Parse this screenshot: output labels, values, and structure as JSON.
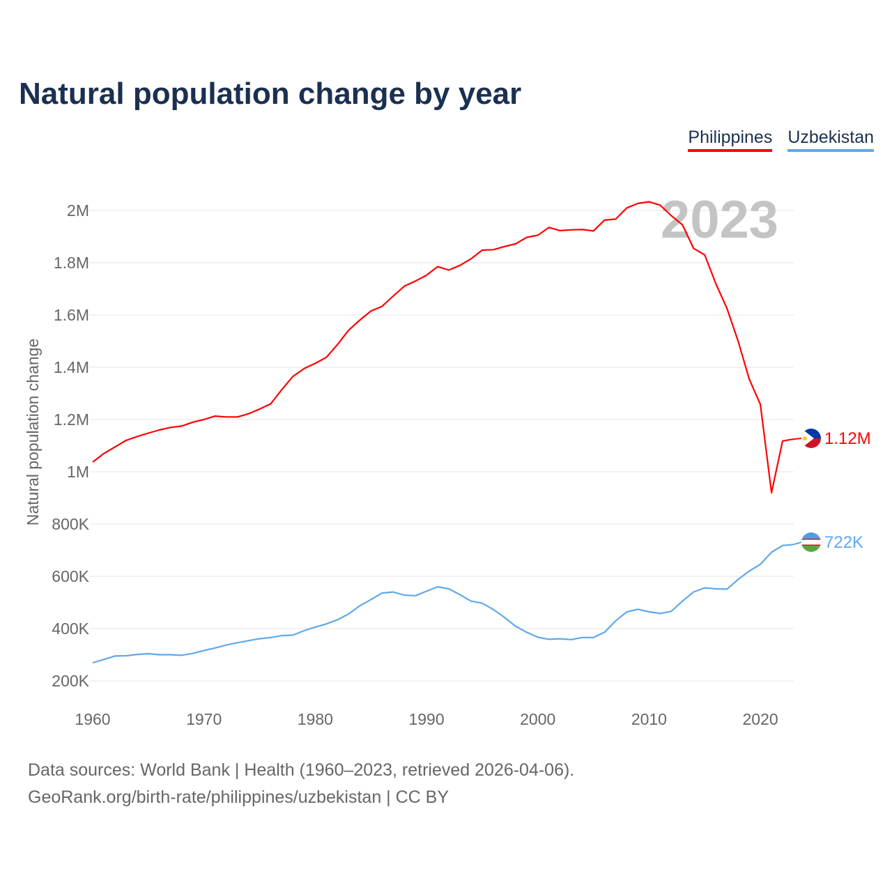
{
  "chart_data": {
    "type": "line",
    "title": "Natural population change by year",
    "ylabel": "Natural population change",
    "xlabel": "",
    "year_watermark": "2023",
    "xlim": [
      1960,
      2023
    ],
    "ylim": [
      200000,
      2000000
    ],
    "x_ticks": [
      1960,
      1970,
      1980,
      1990,
      2000,
      2010,
      2020
    ],
    "x_tick_labels": [
      "1960",
      "1970",
      "1980",
      "1990",
      "2000",
      "2010",
      "2020"
    ],
    "y_ticks": [
      200000,
      400000,
      600000,
      800000,
      1000000,
      1200000,
      1400000,
      1600000,
      1800000,
      2000000
    ],
    "y_tick_labels": [
      "200K",
      "400K",
      "600K",
      "800K",
      "1M",
      "1.2M",
      "1.4M",
      "1.6M",
      "1.8M",
      "2M"
    ],
    "grid": true,
    "legend_position": "top-right",
    "x": [
      1960,
      1961,
      1962,
      1963,
      1964,
      1965,
      1966,
      1967,
      1968,
      1969,
      1970,
      1971,
      1972,
      1973,
      1974,
      1975,
      1976,
      1977,
      1978,
      1979,
      1980,
      1981,
      1982,
      1983,
      1984,
      1985,
      1986,
      1987,
      1988,
      1989,
      1990,
      1991,
      1992,
      1993,
      1994,
      1995,
      1996,
      1997,
      1998,
      1999,
      2000,
      2001,
      2002,
      2003,
      2004,
      2005,
      2006,
      2007,
      2008,
      2009,
      2010,
      2011,
      2012,
      2013,
      2014,
      2015,
      2016,
      2017,
      2018,
      2019,
      2020,
      2021,
      2022,
      2023
    ],
    "series": [
      {
        "name": "Philippines",
        "color": "#ff0000",
        "end_label": "1.12M",
        "values": [
          1037000,
          1070000,
          1095000,
          1120000,
          1135000,
          1148000,
          1160000,
          1170000,
          1175000,
          1190000,
          1200000,
          1213000,
          1210000,
          1210000,
          1222000,
          1240000,
          1260000,
          1315000,
          1365000,
          1395000,
          1415000,
          1438000,
          1487000,
          1542000,
          1580000,
          1615000,
          1633000,
          1672000,
          1710000,
          1730000,
          1752000,
          1785000,
          1772000,
          1790000,
          1815000,
          1848000,
          1850000,
          1862000,
          1872000,
          1897000,
          1905000,
          1935000,
          1923000,
          1926000,
          1927000,
          1922000,
          1963000,
          1967000,
          2010000,
          2027000,
          2033000,
          2020000,
          1980000,
          1945000,
          1855000,
          1830000,
          1720000,
          1625000,
          1500000,
          1355000,
          1258000,
          920000,
          1118000,
          1125000
        ]
      },
      {
        "name": "Uzbekistan",
        "color": "#5fa8ec",
        "end_label": "722K",
        "values": [
          269000,
          282000,
          295000,
          296000,
          301000,
          304000,
          300000,
          300000,
          298000,
          305000,
          316000,
          326000,
          337000,
          346000,
          354000,
          361000,
          366000,
          373000,
          375000,
          392000,
          406000,
          418000,
          434000,
          456000,
          487000,
          511000,
          536000,
          540000,
          528000,
          526000,
          543000,
          560000,
          552000,
          530000,
          505000,
          497000,
          473000,
          443000,
          409000,
          386000,
          367000,
          359000,
          361000,
          358000,
          366000,
          366000,
          386000,
          430000,
          464000,
          474000,
          464000,
          458000,
          466000,
          505000,
          540000,
          556000,
          552000,
          551000,
          588000,
          620000,
          646000,
          692000,
          718000,
          722000
        ]
      }
    ]
  },
  "footer": {
    "line1": "Data sources: World Bank | Health (1960–2023, retrieved 2026-04-06).",
    "line2": "GeoRank.org/birth-rate/philippines/uzbekistan | CC BY"
  }
}
